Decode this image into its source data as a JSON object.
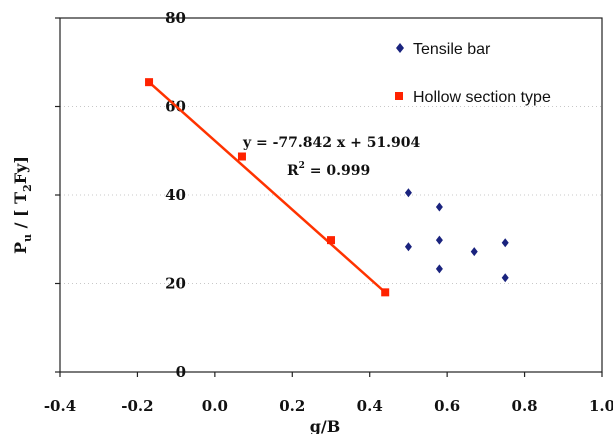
{
  "chart_data": {
    "type": "scatter",
    "xlabel": "g/B",
    "ylabel_main": "P",
    "ylabel_sub": "u",
    "ylabel_rest": " / [ T",
    "ylabel_sub2": "2",
    "ylabel_end": "Fy]",
    "xlim": [
      -0.4,
      1.0
    ],
    "ylim": [
      0,
      80
    ],
    "xticks": [
      "-0.4",
      "-0.2",
      "0.0",
      "0.2",
      "0.4",
      "0.6",
      "0.8",
      "1.0"
    ],
    "xtick_values": [
      -0.4,
      -0.2,
      0.0,
      0.2,
      0.4,
      0.6,
      0.8,
      1.0
    ],
    "yticks": [
      "0",
      "20",
      "40",
      "60",
      "80"
    ],
    "ytick_values": [
      0,
      20,
      40,
      60,
      80
    ],
    "grid": "horizontal dotted",
    "legend_position": "top-right",
    "series": [
      {
        "name": "Tensile bar",
        "marker": "diamond",
        "color": "#1a237e",
        "points": [
          [
            0.5,
            40.5
          ],
          [
            0.5,
            28.3
          ],
          [
            0.58,
            37.3
          ],
          [
            0.58,
            29.8
          ],
          [
            0.58,
            23.3
          ],
          [
            0.67,
            27.2
          ],
          [
            0.75,
            29.2
          ],
          [
            0.75,
            21.3
          ]
        ]
      },
      {
        "name": "Hollow section type",
        "marker": "square",
        "color": "#ff2200",
        "points": [
          [
            -0.17,
            65.5
          ],
          [
            0.07,
            48.7
          ],
          [
            0.3,
            29.8
          ],
          [
            0.44,
            18.0
          ]
        ]
      }
    ],
    "fit_line": {
      "color": "#ff3300",
      "from": [
        -0.17,
        65.5
      ],
      "to": [
        0.44,
        18.0
      ],
      "equation": "y = -77.842 x + 51.904",
      "r2_prefix": "R",
      "r2_sup": "2",
      "r2_suffix": " = 0.999"
    }
  }
}
